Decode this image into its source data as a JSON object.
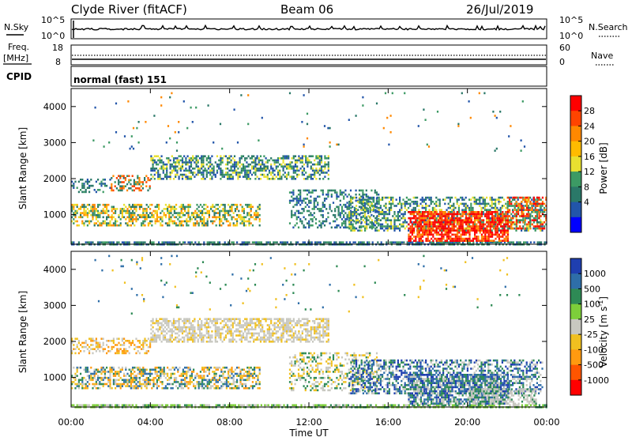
{
  "header": {
    "station": "Clyde River (fitACF)",
    "beam": "Beam 06",
    "date": "26/Jul/2019"
  },
  "params": {
    "nsky_label": "N.Sky",
    "nsky_ticks": [
      "10^5",
      "10^0"
    ],
    "nsearch_label": "N.Search",
    "nsearch_ticks": [
      "10^5",
      "10^0"
    ],
    "freq_label": "Freq.",
    "freq_unit": "[MHz]",
    "freq_ticks": [
      "18",
      "8"
    ],
    "nave_label": "Nave",
    "nave_ticks": [
      "60",
      "0"
    ],
    "cpid_label": "CPID",
    "cpid_value": "normal (fast) 151"
  },
  "chart_data": [
    {
      "type": "heatmap",
      "name": "power",
      "ylabel": "Slant Range [km]",
      "xlabel": "Time UT",
      "xlim_hours": [
        0,
        24
      ],
      "ylim_km": [
        180,
        4500
      ],
      "xticks": [
        "00:00",
        "04:00",
        "08:00",
        "12:00",
        "16:00",
        "20:00",
        "00:00"
      ],
      "yticks": [
        "1000",
        "2000",
        "3000",
        "4000"
      ],
      "ytick_values": [
        1000,
        2000,
        3000,
        4000
      ],
      "colorbar_label": "Power [dB]",
      "colorbar_ticks": [
        "28",
        "24",
        "20",
        "16",
        "12",
        "8",
        "4"
      ],
      "colorbar_colors": [
        "#ff0000",
        "#ff4400",
        "#ff8800",
        "#ffbb00",
        "#e8e030",
        "#3c9a64",
        "#2a7868",
        "#2255aa",
        "#0000ff"
      ],
      "regions": [
        {
          "t0": 0.0,
          "t1": 24.0,
          "r0": 180,
          "r1": 260,
          "density": 0.7,
          "color_idx": [
            5,
            6,
            7
          ]
        },
        {
          "t0": 0.0,
          "t1": 9.5,
          "r0": 700,
          "r1": 1300,
          "density": 0.55,
          "color_idx": [
            2,
            3,
            4,
            5,
            6
          ]
        },
        {
          "t0": 0.0,
          "t1": 2.0,
          "r0": 1650,
          "r1": 2000,
          "density": 0.35,
          "color_idx": [
            5,
            6,
            7
          ]
        },
        {
          "t0": 2.0,
          "t1": 4.0,
          "r0": 1650,
          "r1": 2100,
          "density": 0.4,
          "color_idx": [
            1,
            2,
            5,
            6
          ]
        },
        {
          "t0": 4.0,
          "t1": 13.0,
          "r0": 2000,
          "r1": 2650,
          "density": 0.55,
          "color_idx": [
            5,
            6,
            7,
            4
          ]
        },
        {
          "t0": 11.0,
          "t1": 15.5,
          "r0": 650,
          "r1": 1700,
          "density": 0.35,
          "color_idx": [
            5,
            6,
            7
          ]
        },
        {
          "t0": 14.0,
          "t1": 23.8,
          "r0": 550,
          "r1": 1500,
          "density": 0.5,
          "color_idx": [
            4,
            5,
            6,
            7
          ]
        },
        {
          "t0": 17.0,
          "t1": 22.0,
          "r0": 300,
          "r1": 1100,
          "density": 0.75,
          "color_idx": [
            0,
            0,
            1,
            2
          ]
        },
        {
          "t0": 22.0,
          "t1": 24.0,
          "r0": 600,
          "r1": 1500,
          "density": 0.5,
          "color_idx": [
            0,
            1,
            2,
            5
          ]
        },
        {
          "t0": 1.0,
          "t1": 23.0,
          "r0": 2800,
          "r1": 4400,
          "density": 0.015,
          "color_idx": [
            5,
            6,
            7,
            2
          ]
        }
      ]
    },
    {
      "type": "heatmap",
      "name": "velocity",
      "ylabel": "Slant Range [km]",
      "xlabel": "Time UT",
      "xlim_hours": [
        0,
        24
      ],
      "ylim_km": [
        180,
        4500
      ],
      "xticks": [
        "00:00",
        "04:00",
        "08:00",
        "12:00",
        "16:00",
        "20:00",
        "00:00"
      ],
      "yticks": [
        "1000",
        "2000",
        "3000",
        "4000"
      ],
      "ytick_values": [
        1000,
        2000,
        3000,
        4000
      ],
      "colorbar_label": "Velocity [m s^-1]",
      "colorbar_ticks": [
        "1000",
        "500",
        "100",
        "25",
        "-25",
        "-100",
        "-500",
        "-1000"
      ],
      "colorbar_colors": [
        "#1f3fb0",
        "#2e6ea8",
        "#2e8a55",
        "#7dce3a",
        "#c8c8c0",
        "#f0c020",
        "#ff9a10",
        "#ff5500",
        "#ff0000"
      ],
      "regions": [
        {
          "t0": 0.0,
          "t1": 24.0,
          "r0": 180,
          "r1": 260,
          "density": 0.7,
          "color_idx": [
            3,
            3,
            2,
            4
          ]
        },
        {
          "t0": 0.0,
          "t1": 9.5,
          "r0": 700,
          "r1": 1300,
          "density": 0.55,
          "color_idx": [
            2,
            1,
            5,
            6,
            4
          ]
        },
        {
          "t0": 0.0,
          "t1": 4.0,
          "r0": 1650,
          "r1": 2100,
          "density": 0.4,
          "color_idx": [
            4,
            5,
            6
          ]
        },
        {
          "t0": 4.0,
          "t1": 13.0,
          "r0": 2000,
          "r1": 2650,
          "density": 0.6,
          "color_idx": [
            4,
            4,
            4,
            5
          ]
        },
        {
          "t0": 11.0,
          "t1": 15.5,
          "r0": 650,
          "r1": 1700,
          "density": 0.35,
          "color_idx": [
            4,
            5,
            2
          ]
        },
        {
          "t0": 14.0,
          "t1": 23.8,
          "r0": 550,
          "r1": 1500,
          "density": 0.5,
          "color_idx": [
            2,
            1,
            0,
            4
          ]
        },
        {
          "t0": 17.0,
          "t1": 22.0,
          "r0": 300,
          "r1": 1100,
          "density": 0.75,
          "color_idx": [
            1,
            2,
            0,
            4
          ]
        },
        {
          "t0": 20.0,
          "t1": 23.5,
          "r0": 300,
          "r1": 700,
          "density": 0.6,
          "color_idx": [
            4,
            4,
            2
          ]
        },
        {
          "t0": 1.0,
          "t1": 23.0,
          "r0": 2800,
          "r1": 4400,
          "density": 0.015,
          "color_idx": [
            2,
            1,
            5
          ]
        }
      ]
    }
  ]
}
